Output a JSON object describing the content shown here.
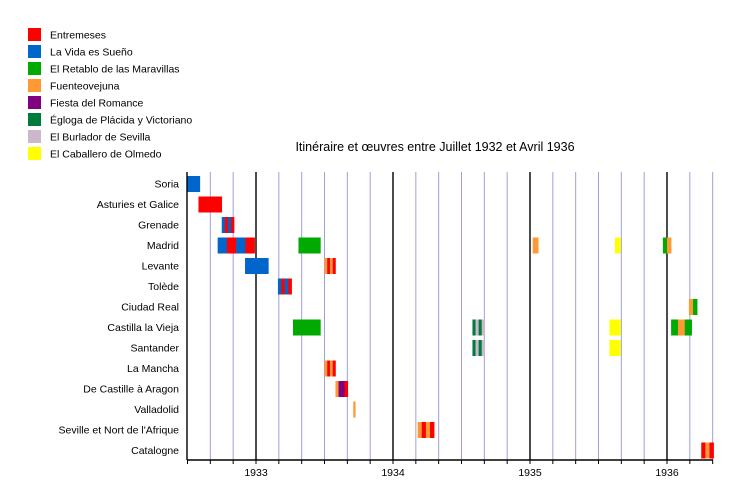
{
  "chart_data": {
    "type": "timeline",
    "title": "Itinéraire et œuvres entre Juillet 1932 et Avril 1936",
    "xlim": [
      1932.5,
      1936.34
    ],
    "x_ticks": [
      1933,
      1934,
      1935,
      1936
    ],
    "minor_tick_step_months": 2,
    "grid": true,
    "legend_position": "top-left",
    "legend": [
      {
        "label": "Entremeses",
        "color": "#ff0000"
      },
      {
        "label": "La Vida es Sueño",
        "color": "#0066cc"
      },
      {
        "label": "El Retablo de las Maravillas",
        "color": "#00aa00"
      },
      {
        "label": "Fuenteovejuna",
        "color": "#ff9933"
      },
      {
        "label": "Fiesta del Romance",
        "color": "#800080"
      },
      {
        "label": "Égloga de Plácida y Victoriano",
        "color": "#007a3d"
      },
      {
        "label": "El Burlador de Sevilla",
        "color": "#ccb8cc"
      },
      {
        "label": "El Caballero de Olmedo",
        "color": "#ffff00"
      }
    ],
    "rows": [
      {
        "label": "Soria",
        "bars": [
          {
            "start": 1932.5,
            "end": 1932.59,
            "plays": [
              1
            ]
          }
        ]
      },
      {
        "label": "Asturies et Galice",
        "bars": [
          {
            "start": 1932.58,
            "end": 1932.75,
            "plays": [
              0
            ]
          }
        ]
      },
      {
        "label": "Grenade",
        "bars": [
          {
            "start": 1932.75,
            "end": 1932.84,
            "plays": [
              1,
              0,
              1,
              0
            ]
          }
        ]
      },
      {
        "label": "Madrid",
        "bars": [
          {
            "start": 1932.72,
            "end": 1932.99,
            "plays": [
              1,
              0,
              1,
              0
            ]
          },
          {
            "start": 1933.31,
            "end": 1933.47,
            "plays": [
              2
            ]
          },
          {
            "start": 1935.02,
            "end": 1935.06,
            "plays": [
              3
            ]
          },
          {
            "start": 1935.62,
            "end": 1935.66,
            "plays": [
              7
            ]
          },
          {
            "start": 1935.97,
            "end": 1936.03,
            "plays": [
              2,
              3
            ]
          }
        ]
      },
      {
        "label": "Levante",
        "bars": [
          {
            "start": 1932.92,
            "end": 1933.09,
            "plays": [
              1
            ]
          },
          {
            "start": 1933.5,
            "end": 1933.58,
            "plays": [
              3,
              0,
              3,
              0
            ]
          }
        ]
      },
      {
        "label": "Tolède",
        "bars": [
          {
            "start": 1933.16,
            "end": 1933.26,
            "plays": [
              1,
              0,
              1,
              0
            ]
          }
        ]
      },
      {
        "label": "Ciudad Real",
        "bars": [
          {
            "start": 1936.16,
            "end": 1936.22,
            "plays": [
              3,
              2
            ]
          }
        ]
      },
      {
        "label": "Castilla la Vieja",
        "bars": [
          {
            "start": 1933.27,
            "end": 1933.47,
            "plays": [
              2
            ]
          },
          {
            "start": 1934.58,
            "end": 1934.67,
            "plays": [
              5,
              6,
              5,
              6
            ]
          },
          {
            "start": 1935.58,
            "end": 1935.66,
            "plays": [
              7
            ]
          },
          {
            "start": 1936.03,
            "end": 1936.18,
            "plays": [
              2,
              3,
              2
            ]
          }
        ]
      },
      {
        "label": "Santander",
        "bars": [
          {
            "start": 1934.58,
            "end": 1934.67,
            "plays": [
              5,
              6,
              5,
              6
            ]
          },
          {
            "start": 1935.58,
            "end": 1935.66,
            "plays": [
              7
            ]
          }
        ]
      },
      {
        "label": "La Mancha",
        "bars": [
          {
            "start": 1933.5,
            "end": 1933.58,
            "plays": [
              3,
              0,
              3,
              0
            ]
          }
        ]
      },
      {
        "label": "De Castille à Aragon",
        "bars": [
          {
            "start": 1933.58,
            "end": 1933.67,
            "plays": [
              3,
              4,
              4,
              0
            ]
          }
        ]
      },
      {
        "label": "Valladolid",
        "bars": [
          {
            "start": 1933.71,
            "end": 1933.72,
            "plays": [
              3
            ]
          }
        ]
      },
      {
        "label": "Seville et Nort de l'Afrique",
        "bars": [
          {
            "start": 1934.18,
            "end": 1934.3,
            "plays": [
              3,
              0,
              3,
              0
            ]
          }
        ]
      },
      {
        "label": "Catalogne",
        "bars": [
          {
            "start": 1936.25,
            "end": 1936.34,
            "plays": [
              0,
              3,
              0
            ]
          }
        ]
      }
    ]
  }
}
